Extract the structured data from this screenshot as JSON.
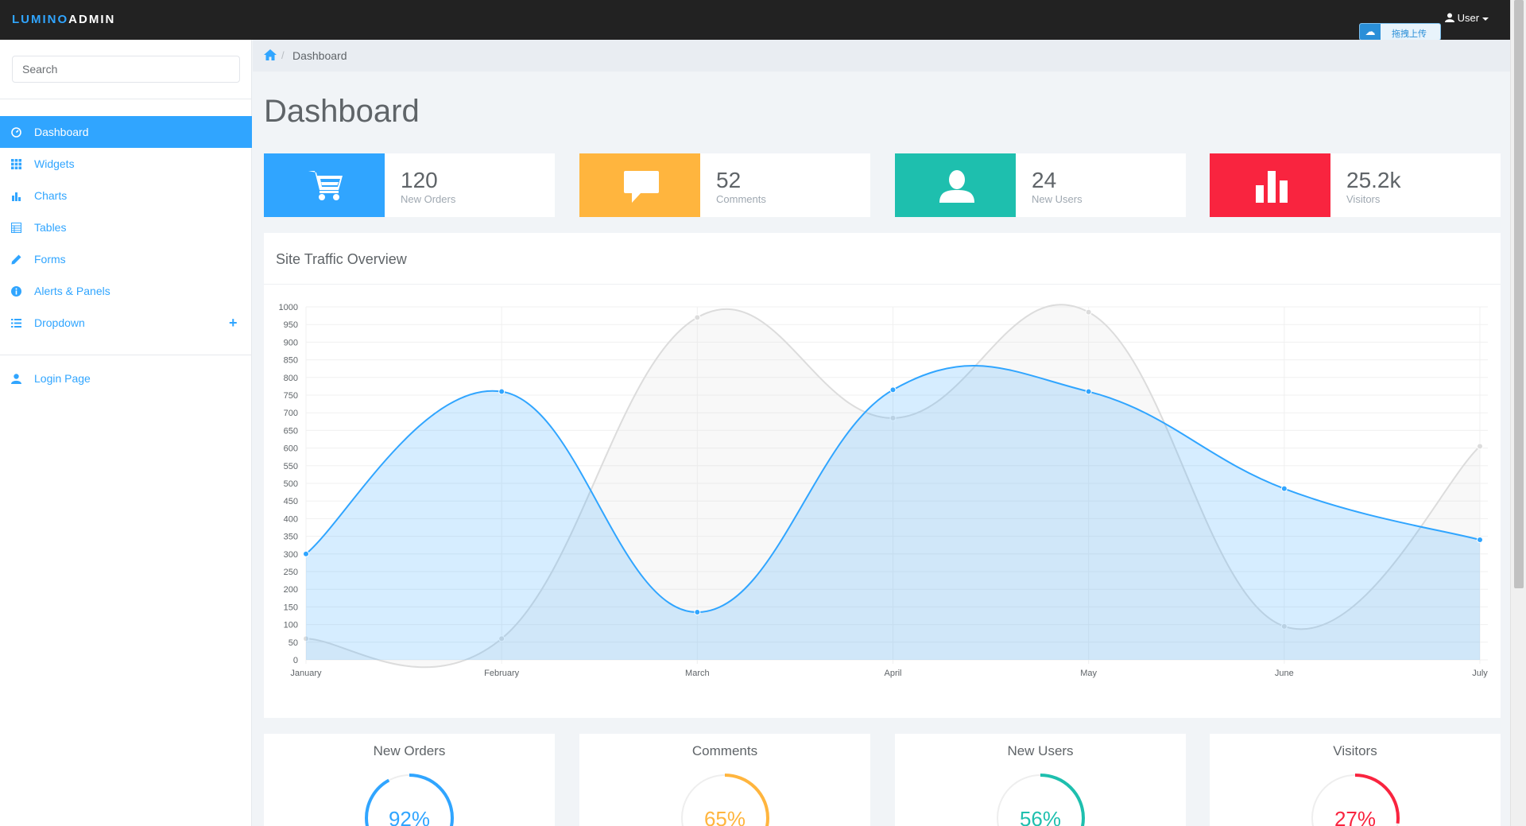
{
  "brand": {
    "part1": "LUMINO",
    "part2": "ADMIN"
  },
  "navbar": {
    "user_label": "User",
    "upload_label": "拖拽上传",
    "upload_icon": "cloud-icon"
  },
  "sidebar": {
    "search_placeholder": "Search",
    "items": [
      {
        "label": "Dashboard",
        "icon": "dashboard-icon",
        "active": true
      },
      {
        "label": "Widgets",
        "icon": "grid-icon"
      },
      {
        "label": "Charts",
        "icon": "bar-chart-icon"
      },
      {
        "label": "Tables",
        "icon": "table-icon"
      },
      {
        "label": "Forms",
        "icon": "pencil-icon"
      },
      {
        "label": "Alerts & Panels",
        "icon": "info-icon"
      },
      {
        "label": "Dropdown",
        "icon": "list-icon",
        "expand_icon": "plus-icon"
      }
    ],
    "login_label": "Login Page"
  },
  "breadcrumb": {
    "home_icon": "home-icon",
    "current": "Dashboard"
  },
  "page_title": "Dashboard",
  "tiles": [
    {
      "value": "120",
      "label": "New Orders",
      "color": "#30a5ff",
      "icon": "cart-icon"
    },
    {
      "value": "52",
      "label": "Comments",
      "color": "#ffb53e",
      "icon": "comment-icon"
    },
    {
      "value": "24",
      "label": "New Users",
      "color": "#1ebfae",
      "icon": "user-icon"
    },
    {
      "value": "25.2k",
      "label": "Visitors",
      "color": "#f9243f",
      "icon": "bar-chart-icon"
    }
  ],
  "chart_panel_title": "Site Traffic Overview",
  "chart_data": {
    "type": "area",
    "title": "",
    "xlabel": "",
    "ylabel": "",
    "ylim": [
      0,
      1000
    ],
    "ytick_step": 50,
    "grid": true,
    "categories": [
      "January",
      "February",
      "March",
      "April",
      "May",
      "June",
      "July"
    ],
    "series": [
      {
        "color": "#dcdcdc",
        "fill": "rgba(220,220,220,0.2)",
        "values": [
          60,
          60,
          970,
          685,
          985,
          95,
          605
        ]
      },
      {
        "color": "#30a5ff",
        "fill": "rgba(48,164,255,0.2)",
        "values": [
          300,
          760,
          135,
          765,
          760,
          485,
          340
        ]
      }
    ]
  },
  "progress_cards": [
    {
      "title": "New Orders",
      "percent": 92,
      "label": "92%",
      "color": "#30a5ff"
    },
    {
      "title": "Comments",
      "percent": 65,
      "label": "65%",
      "color": "#ffb53e"
    },
    {
      "title": "New Users",
      "percent": 56,
      "label": "56%",
      "color": "#1ebfae"
    },
    {
      "title": "Visitors",
      "percent": 27,
      "label": "27%",
      "color": "#f9243f"
    }
  ]
}
